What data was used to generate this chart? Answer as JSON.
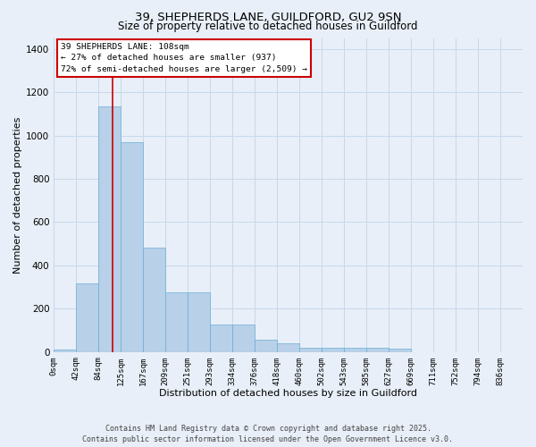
{
  "title_line1": "39, SHEPHERDS LANE, GUILDFORD, GU2 9SN",
  "title_line2": "Size of property relative to detached houses in Guildford",
  "xlabel": "Distribution of detached houses by size in Guildford",
  "ylabel": "Number of detached properties",
  "bar_labels": [
    "0sqm",
    "42sqm",
    "84sqm",
    "125sqm",
    "167sqm",
    "209sqm",
    "251sqm",
    "293sqm",
    "334sqm",
    "376sqm",
    "418sqm",
    "460sqm",
    "502sqm",
    "543sqm",
    "585sqm",
    "627sqm",
    "669sqm",
    "711sqm",
    "752sqm",
    "794sqm",
    "836sqm"
  ],
  "bar_values": [
    10,
    318,
    1133,
    968,
    480,
    275,
    275,
    128,
    128,
    55,
    42,
    20,
    20,
    20,
    20,
    17,
    0,
    0,
    0,
    0,
    0
  ],
  "bar_color": "#b8d0e8",
  "bar_edge_color": "#6baed6",
  "grid_color": "#c8d8ea",
  "background_color": "#e8eff8",
  "vline_x": 2.62,
  "vline_color": "#cc0000",
  "annotation_text": "39 SHEPHERDS LANE: 108sqm\n← 27% of detached houses are smaller (937)\n72% of semi-detached houses are larger (2,509) →",
  "annotation_box_color": "#ffffff",
  "annotation_box_edge_color": "#cc0000",
  "ylim": [
    0,
    1450
  ],
  "yticks": [
    0,
    200,
    400,
    600,
    800,
    1000,
    1200,
    1400
  ],
  "footer_line1": "Contains HM Land Registry data © Crown copyright and database right 2025.",
  "footer_line2": "Contains public sector information licensed under the Open Government Licence v3.0."
}
